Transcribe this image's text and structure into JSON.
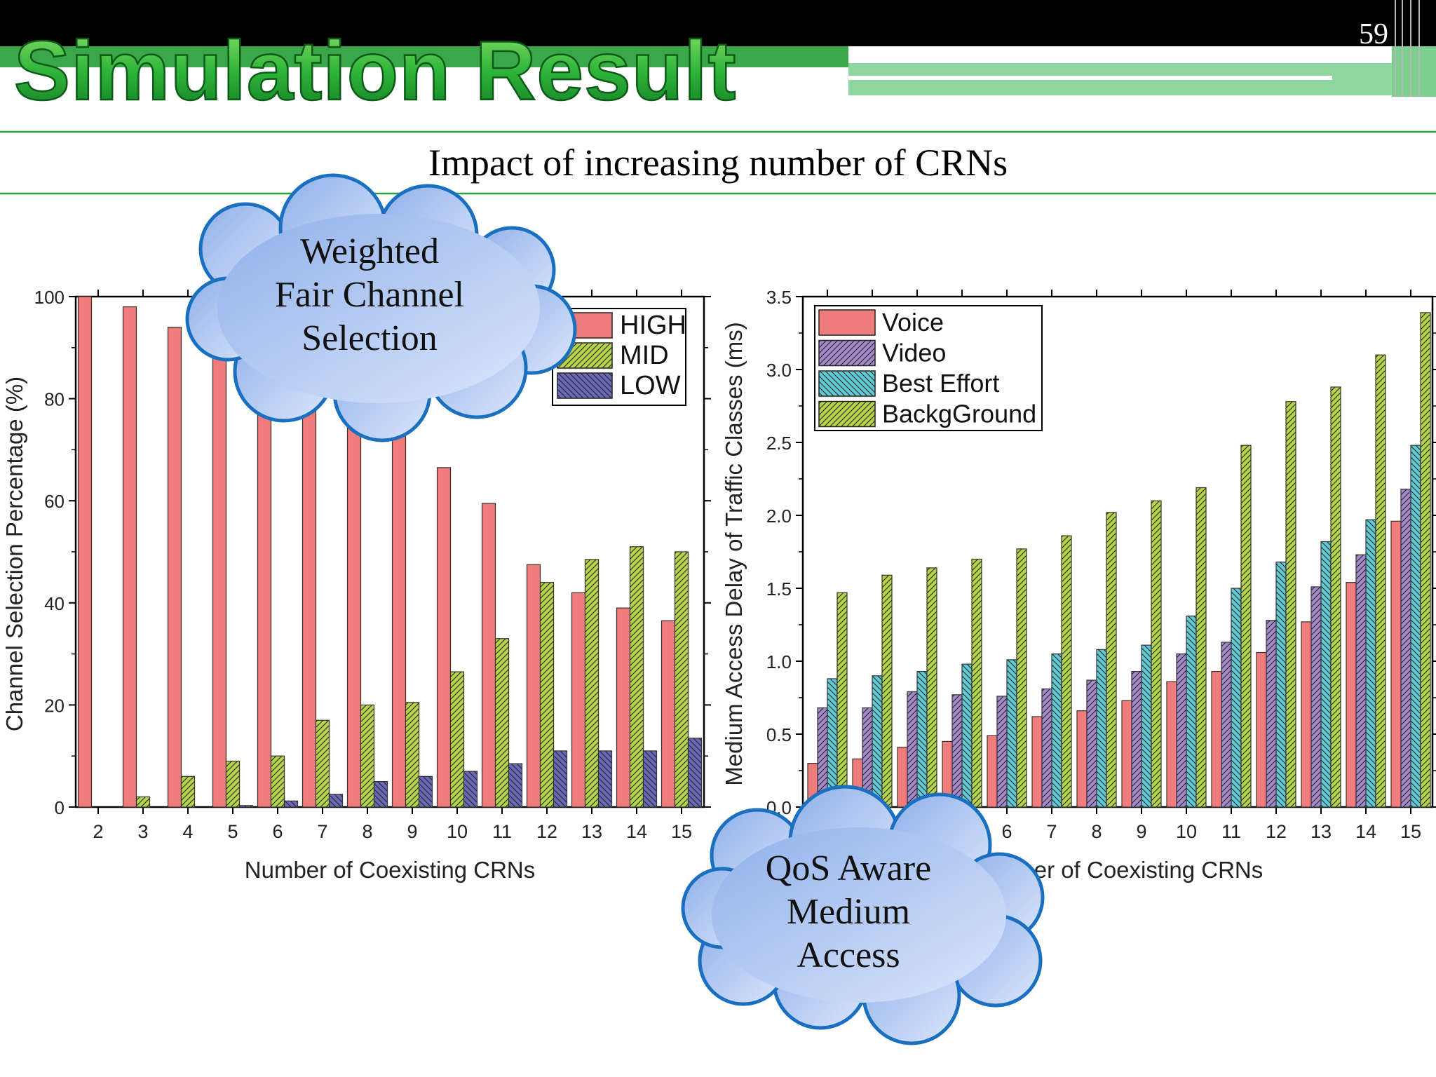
{
  "slide": {
    "title": "Simulation Result",
    "page_number": "59",
    "subtitle": "Impact of increasing number of CRNs",
    "callout_left": [
      "Weighted",
      "Fair Channel",
      "Selection"
    ],
    "callout_right": [
      "QoS Aware",
      "Medium",
      "Access"
    ]
  },
  "colors": {
    "title_green": "#2fb53a",
    "header_black": "#000000",
    "rule_green": "#2e9e3a",
    "cloud_fill": "#aec4ee",
    "cloud_stroke": "#1a6fc0"
  },
  "chart_data": [
    {
      "type": "bar",
      "title": "",
      "xlabel": "Number of Coexisting CRNs",
      "ylabel": "Channel Selection Percentage (%)",
      "ylim": [
        0,
        100
      ],
      "yticks": [
        "0",
        "20",
        "40",
        "60",
        "80",
        "100"
      ],
      "categories": [
        "2",
        "3",
        "4",
        "5",
        "6",
        "7",
        "8",
        "9",
        "10",
        "11",
        "12",
        "13",
        "14",
        "15"
      ],
      "legend_position": "top-right",
      "series": [
        {
          "name": "HIGH",
          "color": "#f07b7b",
          "pattern": "none",
          "values": [
            100,
            98,
            94,
            91,
            88,
            85,
            75,
            74,
            66.5,
            59.5,
            47.5,
            42,
            39,
            36.5
          ]
        },
        {
          "name": "MID",
          "color": "#b5d44a",
          "pattern": "diagonal",
          "values": [
            0,
            2,
            6,
            9,
            10,
            17,
            20,
            20.5,
            26.5,
            33,
            44,
            48.5,
            51,
            50
          ]
        },
        {
          "name": "LOW",
          "color": "#6a6ab8",
          "pattern": "back-diagonal",
          "values": [
            0,
            0,
            0,
            0.3,
            1.2,
            2.5,
            5,
            6,
            7,
            8.5,
            11,
            11,
            11,
            13.5
          ]
        }
      ]
    },
    {
      "type": "bar",
      "title": "",
      "xlabel": "Number of Coexisting CRNs",
      "ylabel": "Medium Access Delay of Traffic Classes (ms)",
      "ylim": [
        0,
        3.5
      ],
      "yticks": [
        "0.0",
        "0.5",
        "1.0",
        "1.5",
        "2.0",
        "2.5",
        "3.0",
        "3.5"
      ],
      "categories": [
        "2",
        "3",
        "4",
        "5",
        "6",
        "7",
        "8",
        "9",
        "10",
        "11",
        "12",
        "13",
        "14",
        "15"
      ],
      "legend_position": "top-left",
      "series": [
        {
          "name": "Voice",
          "color": "#f07b7b",
          "pattern": "none",
          "values": [
            0.3,
            0.33,
            0.41,
            0.45,
            0.49,
            0.62,
            0.66,
            0.73,
            0.86,
            0.93,
            1.06,
            1.27,
            1.54,
            1.96
          ]
        },
        {
          "name": "Video",
          "color": "#a488cc",
          "pattern": "diagonal",
          "values": [
            0.68,
            0.68,
            0.79,
            0.77,
            0.76,
            0.81,
            0.87,
            0.93,
            1.05,
            1.13,
            1.28,
            1.51,
            1.73,
            2.18
          ]
        },
        {
          "name": "Best Effort",
          "color": "#5fcad6",
          "pattern": "back-diagonal",
          "values": [
            0.88,
            0.9,
            0.93,
            0.98,
            1.01,
            1.05,
            1.08,
            1.11,
            1.31,
            1.5,
            1.68,
            1.82,
            1.97,
            2.48
          ]
        },
        {
          "name": "BackgGround",
          "color": "#b5d44a",
          "pattern": "diagonal",
          "values": [
            1.47,
            1.59,
            1.64,
            1.7,
            1.77,
            1.86,
            2.02,
            2.1,
            2.19,
            2.48,
            2.78,
            2.88,
            3.1,
            3.39
          ]
        }
      ]
    }
  ]
}
